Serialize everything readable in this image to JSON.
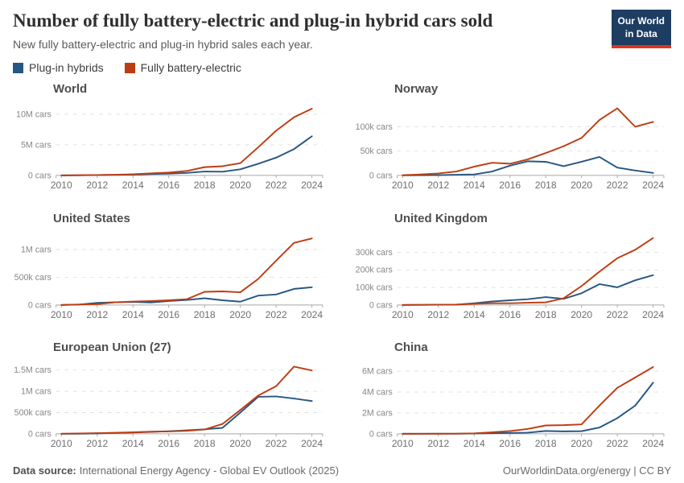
{
  "header": {
    "title": "Number of fully battery-electric and plug-in hybrid cars sold",
    "subtitle": "New fully battery-electric and plug-in hybrid sales each year.",
    "logo": {
      "line1": "Our World",
      "line2": "in Data",
      "bg": "#1d3d63",
      "accent": "#e0341d"
    }
  },
  "legend": {
    "items": [
      {
        "label": "Plug-in hybrids",
        "color": "#265782"
      },
      {
        "label": "Fully battery-electric",
        "color": "#bd3d12"
      }
    ]
  },
  "chart_data": [
    {
      "type": "line",
      "title": "World",
      "x": [
        2010,
        2011,
        2012,
        2013,
        2014,
        2015,
        2016,
        2017,
        2018,
        2019,
        2020,
        2021,
        2022,
        2023,
        2024
      ],
      "xticks": [
        2010,
        2012,
        2014,
        2016,
        2018,
        2020,
        2022,
        2024
      ],
      "x_domain": [
        2009.7,
        2024.6
      ],
      "ymax": 11600000,
      "yticks": [
        {
          "value": 0,
          "label": "0 cars"
        },
        {
          "value": 5000000,
          "label": "5M cars"
        },
        {
          "value": 10000000,
          "label": "10M cars"
        }
      ],
      "series": [
        {
          "name": "Plug-in hybrids",
          "color": "#265782",
          "values": [
            1000,
            9000,
            60000,
            90000,
            130000,
            220000,
            290000,
            400000,
            630000,
            600000,
            1000000,
            1900000,
            2900000,
            4300000,
            6400000
          ]
        },
        {
          "name": "Fully battery-electric",
          "color": "#bd3d12",
          "values": [
            5000,
            40000,
            60000,
            110000,
            190000,
            330000,
            460000,
            720000,
            1350000,
            1500000,
            2000000,
            4600000,
            7300000,
            9500000,
            10900000
          ]
        }
      ]
    },
    {
      "type": "line",
      "title": "Norway",
      "x": [
        2010,
        2011,
        2012,
        2013,
        2014,
        2015,
        2016,
        2017,
        2018,
        2019,
        2020,
        2021,
        2022,
        2023,
        2024
      ],
      "xticks": [
        2010,
        2012,
        2014,
        2016,
        2018,
        2020,
        2022,
        2024
      ],
      "x_domain": [
        2009.7,
        2024.6
      ],
      "ymax": 146000,
      "yticks": [
        {
          "value": 0,
          "label": "0 cars"
        },
        {
          "value": 50000,
          "label": "50k cars"
        },
        {
          "value": 100000,
          "label": "100k cars"
        }
      ],
      "series": [
        {
          "name": "Plug-in hybrids",
          "color": "#265782",
          "values": [
            100,
            300,
            500,
            1300,
            2000,
            8000,
            20000,
            29000,
            28000,
            19000,
            28000,
            38000,
            16000,
            10000,
            5000
          ]
        },
        {
          "name": "Fully battery-electric",
          "color": "#bd3d12",
          "values": [
            400,
            2000,
            4000,
            8000,
            18000,
            26000,
            24000,
            33000,
            46000,
            60000,
            77000,
            114000,
            138000,
            100000,
            110000
          ]
        }
      ]
    },
    {
      "type": "line",
      "title": "United States",
      "x": [
        2010,
        2011,
        2012,
        2013,
        2014,
        2015,
        2016,
        2017,
        2018,
        2019,
        2020,
        2021,
        2022,
        2023,
        2024
      ],
      "xticks": [
        2010,
        2012,
        2014,
        2016,
        2018,
        2020,
        2022,
        2024
      ],
      "x_domain": [
        2009.7,
        2024.6
      ],
      "ymax": 1280000,
      "yticks": [
        {
          "value": 0,
          "label": "0 cars"
        },
        {
          "value": 500000,
          "label": "500k cars"
        },
        {
          "value": 1000000,
          "label": "1M cars"
        }
      ],
      "series": [
        {
          "name": "Plug-in hybrids",
          "color": "#265782",
          "values": [
            0,
            8000,
            38000,
            49000,
            55000,
            45000,
            72000,
            90000,
            122000,
            85000,
            60000,
            170000,
            190000,
            290000,
            320000
          ]
        },
        {
          "name": "Fully battery-electric",
          "color": "#bd3d12",
          "values": [
            1000,
            10000,
            15000,
            48000,
            63000,
            71000,
            85000,
            104000,
            238000,
            245000,
            230000,
            470000,
            800000,
            1120000,
            1200000
          ]
        }
      ]
    },
    {
      "type": "line",
      "title": "United Kingdom",
      "x": [
        2010,
        2011,
        2012,
        2013,
        2014,
        2015,
        2016,
        2017,
        2018,
        2019,
        2020,
        2021,
        2022,
        2023,
        2024
      ],
      "xticks": [
        2010,
        2012,
        2014,
        2016,
        2018,
        2020,
        2022,
        2024
      ],
      "x_domain": [
        2009.7,
        2024.6
      ],
      "ymax": 405000,
      "yticks": [
        {
          "value": 0,
          "label": "0 cars"
        },
        {
          "value": 100000,
          "label": "100k cars"
        },
        {
          "value": 200000,
          "label": "200k cars"
        },
        {
          "value": 300000,
          "label": "300k cars"
        }
      ],
      "series": [
        {
          "name": "Plug-in hybrids",
          "color": "#265782",
          "values": [
            0,
            1000,
            1500,
            2000,
            10000,
            20000,
            27000,
            33000,
            45000,
            35000,
            67000,
            119000,
            101000,
            141000,
            170000
          ]
        },
        {
          "name": "Fully battery-electric",
          "color": "#bd3d12",
          "values": [
            200,
            1000,
            1500,
            2500,
            7000,
            10000,
            10000,
            13000,
            15000,
            38000,
            108000,
            190000,
            267000,
            315000,
            382000
          ]
        }
      ]
    },
    {
      "type": "line",
      "title": "European Union (27)",
      "x": [
        2010,
        2011,
        2012,
        2013,
        2014,
        2015,
        2016,
        2017,
        2018,
        2019,
        2020,
        2021,
        2022,
        2023,
        2024
      ],
      "xticks": [
        2010,
        2012,
        2014,
        2016,
        2018,
        2020,
        2022,
        2024
      ],
      "x_domain": [
        2009.7,
        2024.6
      ],
      "ymax": 1670000,
      "yticks": [
        {
          "value": 0,
          "label": "0 cars"
        },
        {
          "value": 500000,
          "label": "500k cars"
        },
        {
          "value": 1000000,
          "label": "1M cars"
        },
        {
          "value": 1500000,
          "label": "1.5M cars"
        }
      ],
      "series": [
        {
          "name": "Plug-in hybrids",
          "color": "#265782",
          "values": [
            500,
            2000,
            10000,
            20000,
            30000,
            45000,
            60000,
            80000,
            105000,
            140000,
            500000,
            870000,
            880000,
            830000,
            770000
          ]
        },
        {
          "name": "Fully battery-electric",
          "color": "#bd3d12",
          "values": [
            1000,
            8000,
            15000,
            25000,
            35000,
            50000,
            55000,
            70000,
            100000,
            230000,
            560000,
            900000,
            1120000,
            1580000,
            1490000
          ]
        }
      ]
    },
    {
      "type": "line",
      "title": "China",
      "x": [
        2010,
        2011,
        2012,
        2013,
        2014,
        2015,
        2016,
        2017,
        2018,
        2019,
        2020,
        2021,
        2022,
        2023,
        2024
      ],
      "xticks": [
        2010,
        2012,
        2014,
        2016,
        2018,
        2020,
        2022,
        2024
      ],
      "x_domain": [
        2009.7,
        2024.6
      ],
      "ymax": 6800000,
      "yticks": [
        {
          "value": 0,
          "label": "0 cars"
        },
        {
          "value": 2000000,
          "label": "2M cars"
        },
        {
          "value": 4000000,
          "label": "4M cars"
        },
        {
          "value": 6000000,
          "label": "6M cars"
        }
      ],
      "series": [
        {
          "name": "Plug-in hybrids",
          "color": "#265782",
          "values": [
            0,
            1000,
            3000,
            3000,
            30000,
            60000,
            80000,
            110000,
            270000,
            230000,
            250000,
            600000,
            1500000,
            2700000,
            4900000
          ]
        },
        {
          "name": "Fully battery-electric",
          "color": "#bd3d12",
          "values": [
            1000,
            5000,
            10000,
            15000,
            45000,
            150000,
            260000,
            470000,
            800000,
            830000,
            900000,
            2700000,
            4400000,
            5400000,
            6400000
          ]
        }
      ]
    }
  ],
  "footer": {
    "datasource_label": "Data source:",
    "datasource": "International Energy Agency - Global EV Outlook (2025)",
    "link": "OurWorldinData.org/energy",
    "license_suffix": " | CC BY"
  }
}
